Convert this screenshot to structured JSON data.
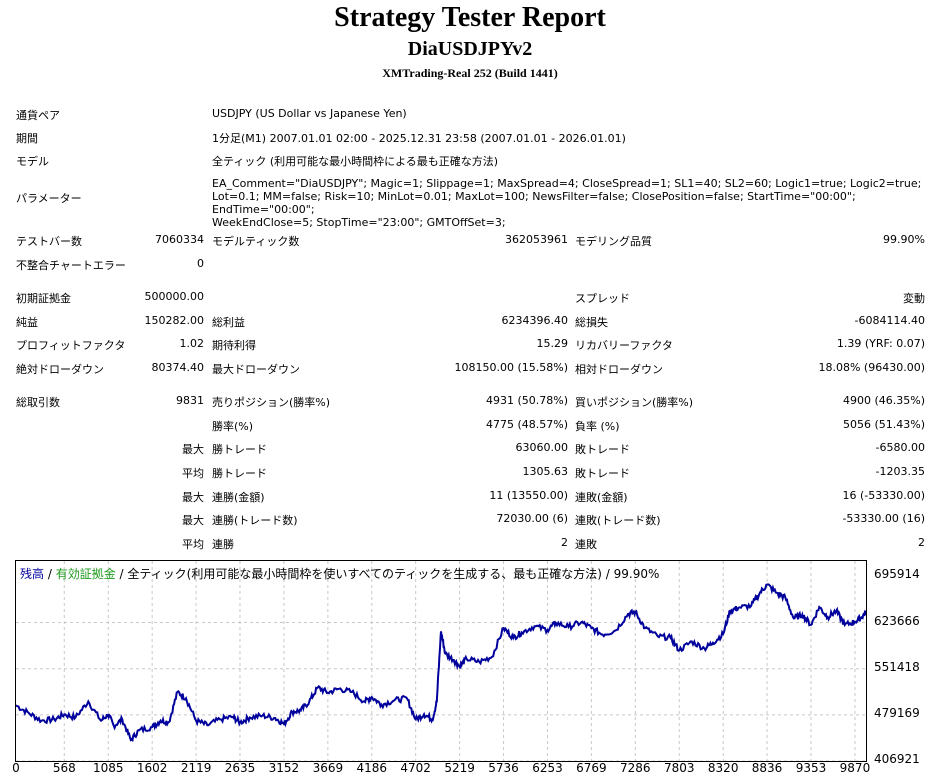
{
  "header": {
    "title": "Strategy Tester Report",
    "ea_name": "DiaUSDJPYv2",
    "server": "XMTrading-Real 252 (Build 1441)"
  },
  "info": {
    "symbol_label": "通貨ペア",
    "symbol": "USDJPY (US Dollar vs Japanese Yen)",
    "period_label": "期間",
    "period": "1分足(M1) 2007.01.01 02:00 - 2025.12.31 23:58 (2007.01.01 - 2026.01.01)",
    "model_label": "モデル",
    "model": "全ティック (利用可能な最小時間枠による最も正確な方法)",
    "params_label": "パラメーター",
    "params_line1": "EA_Comment=\"DiaUSDJPY\"; Magic=1; Slippage=1; MaxSpread=4; CloseSpread=1; SL1=40; SL2=60; Logic1=true; Logic2=true;",
    "params_line2": "Lot=0.1; MM=false; Risk=10; MinLot=0.01; MaxLot=100; NewsFilter=false; ClosePosition=false; StartTime=\"00:00\"; EndTime=\"00:00\";",
    "params_line3": "WeekEndClose=5; StopTime=\"23:00\"; GMTOffSet=3;"
  },
  "stats": {
    "bars_label": "テストバー数",
    "bars": "7060334",
    "ticks_label": "モデルティック数",
    "ticks": "362053961",
    "quality_label": "モデリング品質",
    "quality": "99.90%",
    "mismatch_label": "不整合チャートエラー",
    "mismatch": "0",
    "deposit_label": "初期証拠金",
    "deposit": "500000.00",
    "spread_label": "スプレッド",
    "spread": "変動",
    "net_label": "純益",
    "net": "150282.00",
    "gross_profit_label": "総利益",
    "gross_profit": "6234396.40",
    "gross_loss_label": "総損失",
    "gross_loss": "-6084114.40",
    "pf_label": "プロフィットファクタ",
    "pf": "1.02",
    "expected_label": "期待利得",
    "expected": "15.29",
    "recovery_label": "リカバリーファクタ",
    "recovery": "1.39 (YRF: 0.07)",
    "abs_dd_label": "絶対ドローダウン",
    "abs_dd": "80374.40",
    "max_dd_label": "最大ドローダウン",
    "max_dd": "108150.00 (15.58%)",
    "rel_dd_label": "相対ドローダウン",
    "rel_dd": "18.08% (96430.00)",
    "total_trades_label": "総取引数",
    "total_trades": "9831",
    "short_label": "売りポジション(勝率%)",
    "short": "4931 (50.78%)",
    "long_label": "買いポジション(勝率%)",
    "long": "4900 (46.35%)",
    "win_rate_label": "勝率(%)",
    "win_rate": "4775 (48.57%)",
    "loss_rate_label": "負率 (%)",
    "loss_rate": "5056 (51.43%)",
    "max_word": "最大",
    "avg_word": "平均",
    "win_trade_label": "勝トレード",
    "largest_win": "63060.00",
    "avg_win": "1305.63",
    "loss_trade_label": "敗トレード",
    "largest_loss": "-6580.00",
    "avg_loss": "-1203.35",
    "cons_wins_amt_label": "連勝(金額)",
    "cons_wins_amt": "11 (13550.00)",
    "cons_losses_amt_label": "連敗(金額)",
    "cons_losses_amt": "16 (-53330.00)",
    "cons_wins_cnt_label": "連勝(トレード数)",
    "cons_wins_cnt": "72030.00 (6)",
    "cons_losses_cnt_label": "連敗(トレード数)",
    "cons_losses_cnt": "-53330.00 (16)",
    "avg_cons_wins_label": "連勝",
    "avg_cons_wins": "2",
    "avg_cons_losses_label": "連敗",
    "avg_cons_losses": "2"
  },
  "legend": {
    "balance": "残高",
    "sep1": " / ",
    "equity": "有効証拠金",
    "rest": " / 全ティック(利用可能な最小時間枠を使いすべてのティックを生成する、最も正確な方法) / 99.90%"
  },
  "colors": {
    "balance": "#00009c",
    "equity": "#1f9a1f",
    "grid": "#c8c8c8"
  },
  "chart_data": {
    "type": "line",
    "title": "",
    "xlabel": "",
    "ylabel": "",
    "x_ticks": [
      "0",
      "568",
      "1085",
      "1602",
      "2119",
      "2635",
      "3152",
      "3669",
      "4186",
      "4702",
      "5219",
      "5736",
      "6253",
      "6769",
      "7286",
      "7803",
      "8320",
      "8836",
      "9353",
      "9870"
    ],
    "y_ticks": [
      "695914",
      "623666",
      "551418",
      "479169",
      "406921"
    ],
    "xlim": [
      0,
      10000
    ],
    "ylim": [
      406921,
      720000
    ],
    "grid": true,
    "series": [
      {
        "x": [
          0,
          150,
          300,
          450,
          568,
          700,
          850,
          1000,
          1085,
          1150,
          1250,
          1350,
          1450,
          1602,
          1700,
          1800,
          1900,
          2000,
          2119,
          2250,
          2400,
          2550,
          2635,
          2750,
          2900,
          3050,
          3152,
          3250,
          3350,
          3450,
          3550,
          3669,
          3800,
          3950,
          4100,
          4186,
          4300,
          4450,
          4600,
          4702,
          4800,
          4900,
          4950,
          5000,
          5050,
          5150,
          5219,
          5300,
          5450,
          5600,
          5736,
          5850,
          5950,
          6100,
          6253,
          6350,
          6500,
          6650,
          6769,
          6900,
          7050,
          7200,
          7286,
          7400,
          7550,
          7700,
          7803,
          7950,
          8100,
          8200,
          8320,
          8400,
          8500,
          8650,
          8750,
          8836,
          8950,
          9050,
          9150,
          9250,
          9353,
          9450,
          9550,
          9650,
          9750,
          9870,
          9950,
          10000
        ],
        "values": [
          494000,
          482000,
          470000,
          472000,
          480000,
          475000,
          500000,
          470000,
          480000,
          462000,
          472000,
          440000,
          455000,
          460000,
          470000,
          468000,
          515000,
          505000,
          470000,
          463000,
          472000,
          476000,
          467000,
          475000,
          478000,
          474000,
          465000,
          484000,
          486000,
          500000,
          522000,
          514000,
          520000,
          515000,
          500000,
          507000,
          495000,
          502000,
          505000,
          472000,
          480000,
          472000,
          500000,
          610000,
          575000,
          565000,
          555000,
          567000,
          562000,
          570000,
          615000,
          600000,
          608000,
          618000,
          612000,
          623000,
          617000,
          624000,
          615000,
          605000,
          611000,
          637000,
          640000,
          615000,
          602000,
          600000,
          580000,
          594000,
          583000,
          592000,
          606000,
          642000,
          647000,
          650000,
          670000,
          683000,
          670000,
          663000,
          630000,
          636000,
          620000,
          648000,
          632000,
          642000,
          620000,
          625000,
          632000,
          640000
        ]
      }
    ]
  }
}
